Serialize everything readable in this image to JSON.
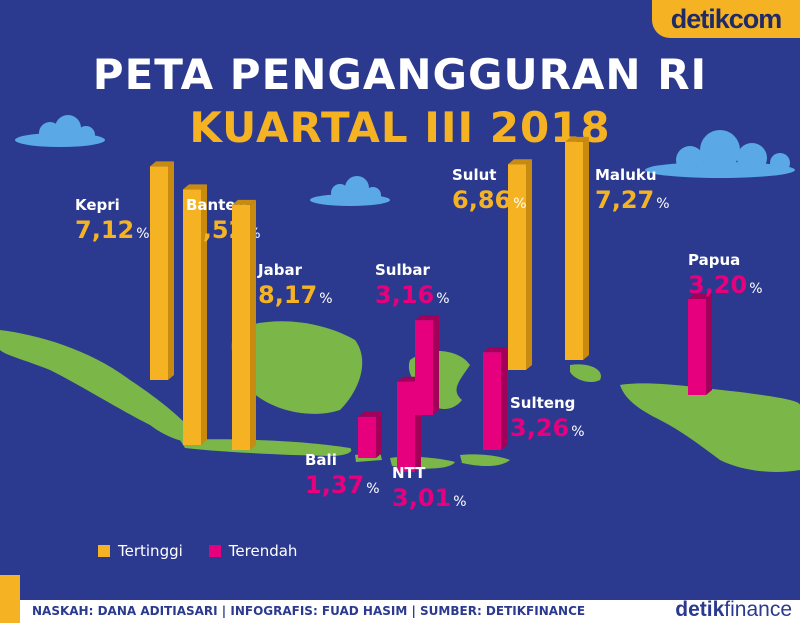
{
  "brand": {
    "top_logo": "detikcom",
    "bottom_logo_bold": "detik",
    "bottom_logo_light": "finance"
  },
  "title": {
    "line1": "PETA PENGANGGURAN RI",
    "line2": "KUARTAL III 2018"
  },
  "legend": [
    {
      "label": "Tertinggi",
      "color": "#f5b324"
    },
    {
      "label": "Terendah",
      "color": "#e6007e"
    }
  ],
  "credit": "NASKAH: DANA ADITIASARI | INFOGRAFIS: FUAD HASIM | SUMBER: DETIKFINANCE",
  "colors": {
    "background": "#2b3a8f",
    "land": "#7ab648",
    "high": "#f5b324",
    "low": "#e6007e"
  },
  "chart_data": {
    "type": "bar",
    "unit": "%",
    "series": [
      {
        "name": "Tertinggi",
        "color": "#f5b324",
        "points": [
          {
            "province": "Kepri",
            "value": 7.12,
            "label": "7,12"
          },
          {
            "province": "Banten",
            "value": 8.52,
            "label": "8,52"
          },
          {
            "province": "Jabar",
            "value": 8.17,
            "label": "8,17"
          },
          {
            "province": "Sulut",
            "value": 6.86,
            "label": "6,86"
          },
          {
            "province": "Maluku",
            "value": 7.27,
            "label": "7,27"
          }
        ]
      },
      {
        "name": "Terendah",
        "color": "#e6007e",
        "points": [
          {
            "province": "Bali",
            "value": 1.37,
            "label": "1,37"
          },
          {
            "province": "NTT",
            "value": 3.01,
            "label": "3,01"
          },
          {
            "province": "Sulbar",
            "value": 3.16,
            "label": "3,16"
          },
          {
            "province": "Sulteng",
            "value": 3.26,
            "label": "3,26"
          },
          {
            "province": "Papua",
            "value": 3.2,
            "label": "3,20"
          }
        ]
      }
    ]
  }
}
